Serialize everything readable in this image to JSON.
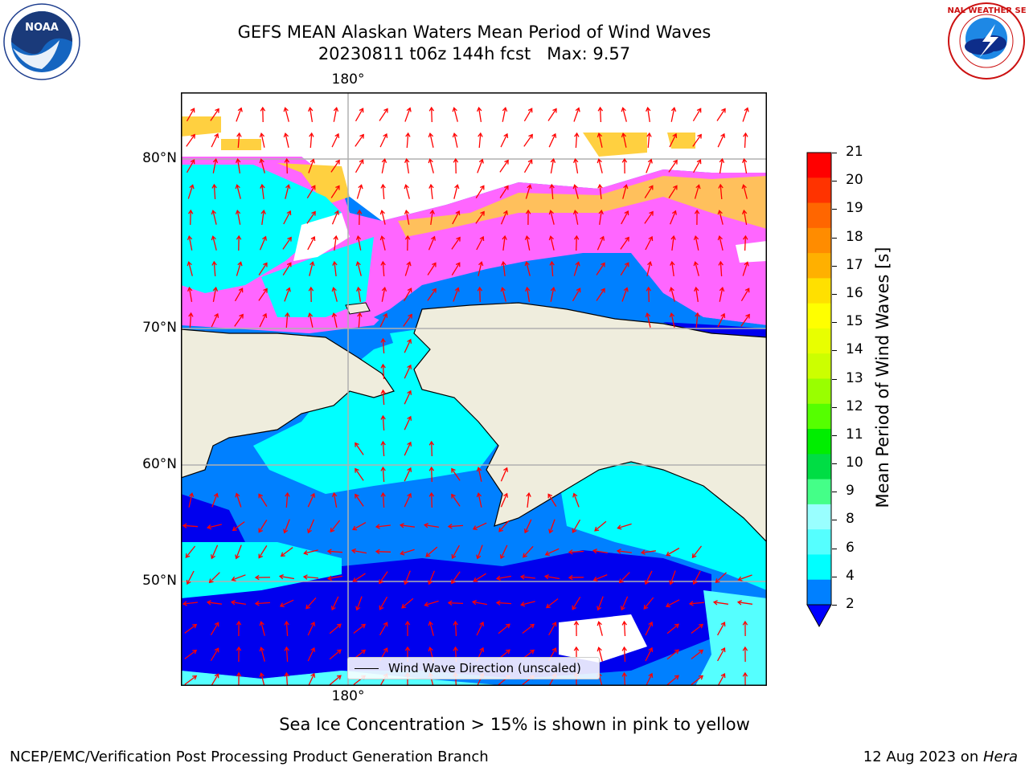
{
  "title": {
    "line1": "GEFS MEAN Alaskan Waters Mean Period of Wind Waves",
    "line2": "20230811 t06z 144h fcst   Max: 9.57"
  },
  "logos": {
    "left": "NOAA",
    "right": "NATIONAL WEATHER SERVICE"
  },
  "map": {
    "lon_label_top": "180°",
    "lon_label_bottom": "180°",
    "lat_labels": [
      "80°N",
      "70°N",
      "60°N",
      "50°N"
    ],
    "legend_text": "Wind Wave Direction (unscaled)",
    "colors": {
      "land": "#efeddd",
      "ocean_2_4": "#0080ff",
      "ocean_lt2": "#0000ee",
      "ocean_4_6": "#00ffff",
      "ocean_6_8": "#55ffff",
      "ice_pink": "#ff66ff",
      "ice_yellow": "#ffd040",
      "arrow": "#ff0000",
      "grid": "#b0b0b0"
    }
  },
  "colorbar": {
    "label": "Mean Period of Wind Waves [s]",
    "ticks": [
      "21",
      "20",
      "19",
      "18",
      "17",
      "16",
      "15",
      "14",
      "13",
      "12",
      "11",
      "10",
      "9",
      "8",
      "6",
      "4",
      "2"
    ],
    "colors": [
      "#ff0000",
      "#ff3300",
      "#ff6600",
      "#ff8c00",
      "#ffb000",
      "#ffe000",
      "#ffff00",
      "#e8ff00",
      "#ccff00",
      "#99ff00",
      "#55ff00",
      "#00ee00",
      "#00dd44",
      "#44ff88",
      "#99ffff",
      "#55ffff",
      "#00ffff",
      "#0080ff"
    ],
    "extend_color": "#0000ff"
  },
  "note": "Sea Ice Concentration > 15% is shown in pink to yellow",
  "footer": {
    "left": "NCEP/EMC/Verification Post Processing Product Generation Branch",
    "right_date": "12 Aug 2023 on ",
    "right_host": "Hera"
  }
}
